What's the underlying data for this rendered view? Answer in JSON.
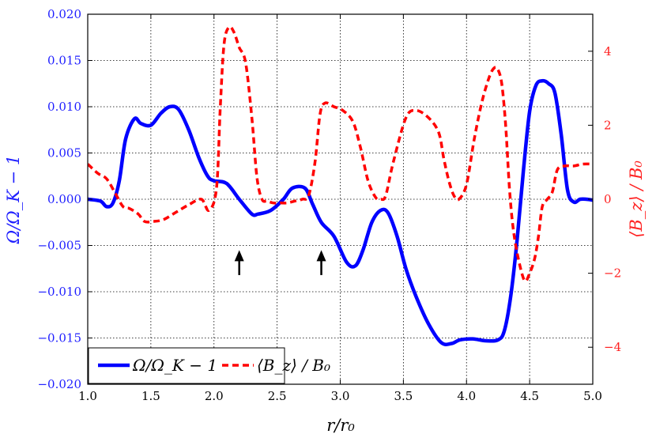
{
  "chart_data": {
    "type": "line",
    "title": "",
    "xlabel": "r/r₀",
    "ylabel_left": "Ω/Ω_K − 1",
    "ylabel_right": "⟨B_z⟩ / B₀",
    "xlim": [
      1.0,
      5.0
    ],
    "ylim_left": [
      -0.02,
      0.02
    ],
    "ylim_right": [
      -5,
      5
    ],
    "xticks": [
      "1.0",
      "1.5",
      "2.0",
      "2.5",
      "3.0",
      "3.5",
      "4.0",
      "4.5",
      "5.0"
    ],
    "yticks_left": [
      "−0.020",
      "−0.015",
      "−0.010",
      "−0.005",
      "0.000",
      "0.005",
      "0.010",
      "0.015",
      "0.020"
    ],
    "yticks_right": [
      "−4",
      "−2",
      "0",
      "2",
      "4"
    ],
    "grid": true,
    "legend_position": "bottom-left",
    "series": [
      {
        "name": "Ω/Ω_K − 1",
        "axis": "left",
        "color": "#0000ff",
        "style": "solid",
        "x": [
          1.0,
          1.1,
          1.15,
          1.2,
          1.25,
          1.3,
          1.37,
          1.42,
          1.5,
          1.58,
          1.65,
          1.72,
          1.8,
          1.88,
          1.95,
          2.0,
          2.1,
          2.2,
          2.3,
          2.35,
          2.45,
          2.55,
          2.62,
          2.72,
          2.78,
          2.85,
          2.95,
          3.05,
          3.12,
          3.18,
          3.25,
          3.32,
          3.38,
          3.45,
          3.52,
          3.6,
          3.7,
          3.8,
          3.88,
          3.95,
          4.05,
          4.15,
          4.25,
          4.3,
          4.35,
          4.4,
          4.45,
          4.5,
          4.55,
          4.6,
          4.65,
          4.7,
          4.75,
          4.8,
          4.85,
          4.9,
          4.95,
          5.0
        ],
        "y": [
          0.0,
          -0.0002,
          -0.0008,
          -0.0004,
          0.002,
          0.0065,
          0.0087,
          0.0082,
          0.008,
          0.0093,
          0.01,
          0.0097,
          0.0075,
          0.0045,
          0.0025,
          0.002,
          0.0017,
          0.0,
          -0.0016,
          -0.0016,
          -0.0012,
          0.0,
          0.0012,
          0.0012,
          -0.0005,
          -0.0025,
          -0.004,
          -0.0068,
          -0.0072,
          -0.0055,
          -0.0025,
          -0.0012,
          -0.0015,
          -0.004,
          -0.0075,
          -0.0105,
          -0.0135,
          -0.0155,
          -0.0156,
          -0.0152,
          -0.0151,
          -0.0153,
          -0.0152,
          -0.0142,
          -0.0105,
          -0.0045,
          0.003,
          0.0095,
          0.0123,
          0.0128,
          0.0125,
          0.0115,
          0.007,
          0.001,
          -0.0003,
          0.0,
          0.0,
          -0.0001
        ]
      },
      {
        "name": "⟨B_z⟩ / B₀",
        "axis": "right",
        "color": "#ff0000",
        "style": "dashed",
        "x": [
          1.0,
          1.08,
          1.15,
          1.22,
          1.28,
          1.33,
          1.4,
          1.45,
          1.52,
          1.6,
          1.7,
          1.8,
          1.9,
          1.96,
          2.02,
          2.05,
          2.08,
          2.12,
          2.16,
          2.2,
          2.25,
          2.3,
          2.34,
          2.38,
          2.42,
          2.47,
          2.52,
          2.58,
          2.64,
          2.7,
          2.75,
          2.8,
          2.84,
          2.88,
          2.95,
          3.02,
          3.1,
          3.16,
          3.22,
          3.28,
          3.32,
          3.36,
          3.42,
          3.52,
          3.6,
          3.7,
          3.78,
          3.82,
          3.86,
          3.9,
          3.94,
          4.0,
          4.06,
          4.12,
          4.18,
          4.22,
          4.25,
          4.28,
          4.31,
          4.34,
          4.37,
          4.41,
          4.46,
          4.5,
          4.54,
          4.57,
          4.6,
          4.64,
          4.68,
          4.72,
          4.78,
          4.85,
          4.92,
          5.0
        ],
        "y": [
          0.95,
          0.7,
          0.55,
          0.15,
          -0.2,
          -0.25,
          -0.4,
          -0.6,
          -0.6,
          -0.55,
          -0.35,
          -0.15,
          0.0,
          -0.3,
          0.3,
          2.5,
          4.2,
          4.65,
          4.5,
          4.1,
          3.7,
          2.2,
          0.6,
          0.0,
          -0.05,
          -0.1,
          -0.1,
          -0.1,
          -0.05,
          0.0,
          0.1,
          1.0,
          2.3,
          2.6,
          2.5,
          2.4,
          2.1,
          1.4,
          0.5,
          0.05,
          0.0,
          0.1,
          1.0,
          2.2,
          2.4,
          2.2,
          1.8,
          1.1,
          0.5,
          0.1,
          0.0,
          0.4,
          1.6,
          2.6,
          3.3,
          3.55,
          3.5,
          3.1,
          2.0,
          0.3,
          -0.8,
          -1.6,
          -2.2,
          -2.0,
          -1.6,
          -1.0,
          -0.2,
          0.0,
          0.2,
          0.8,
          0.9,
          0.9,
          0.95,
          0.95
        ]
      }
    ],
    "annotations": [
      {
        "type": "arrow",
        "x": 2.2,
        "y_from": -0.0082,
        "y_to": -0.0055
      },
      {
        "type": "arrow",
        "x": 2.85,
        "y_from": -0.0082,
        "y_to": -0.0055
      }
    ]
  }
}
